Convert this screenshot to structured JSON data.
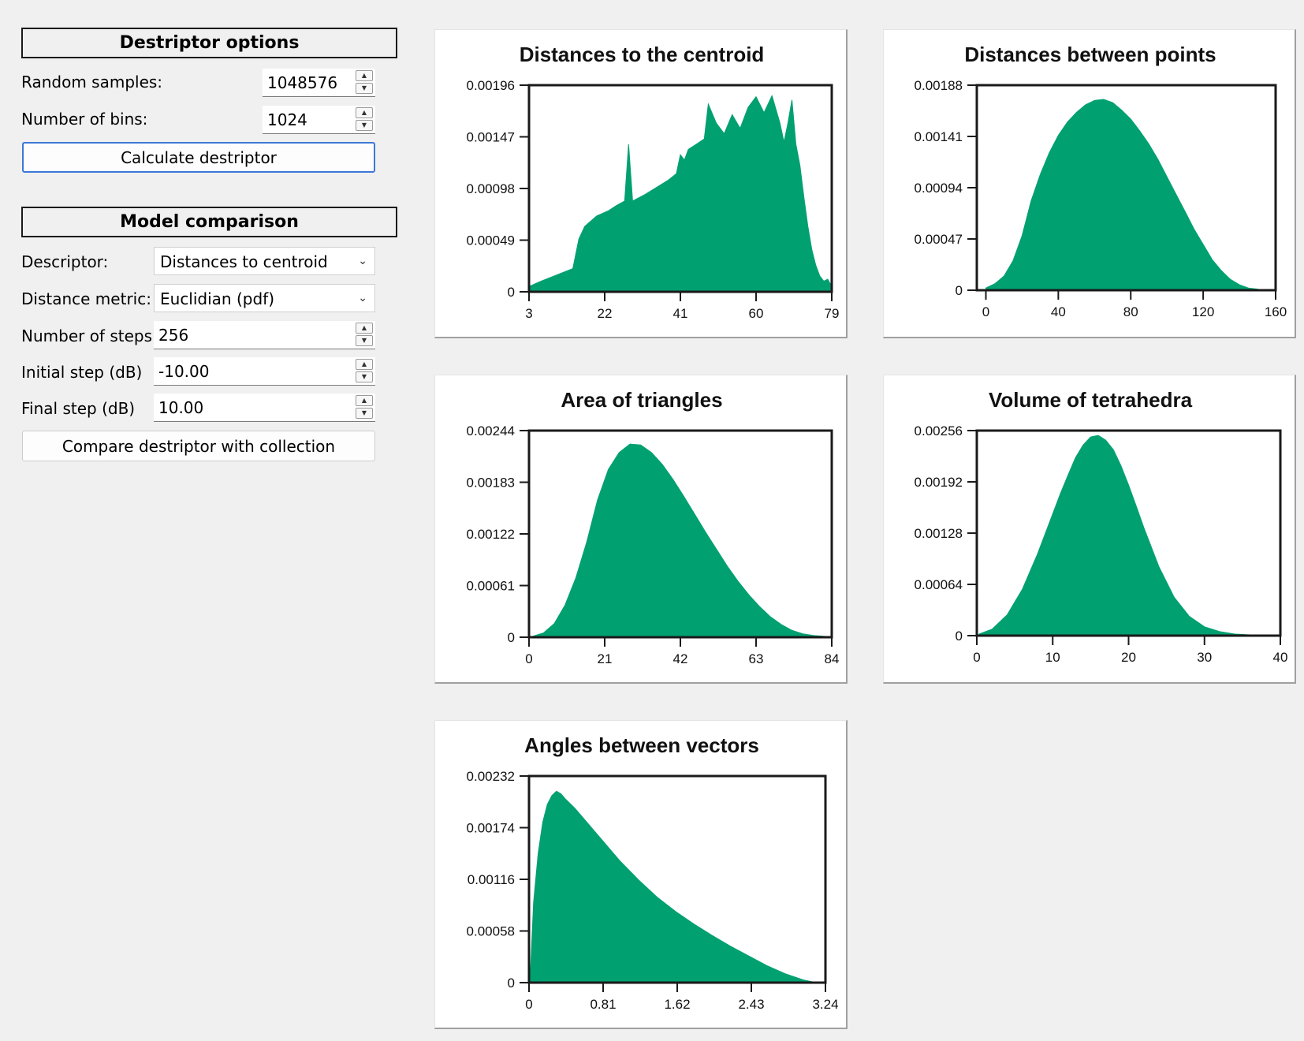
{
  "destriptor_options": {
    "header": "Destriptor options",
    "random_samples": {
      "label": "Random samples:",
      "value": "1048576"
    },
    "number_of_bins": {
      "label": "Number of bins:",
      "value": "1024"
    },
    "calculate_button": "Calculate destriptor"
  },
  "model_comparison": {
    "header": "Model comparison",
    "descriptor": {
      "label": "Descriptor:",
      "value": "Distances to centroid"
    },
    "distance_metric": {
      "label": "Distance metric:",
      "value": "Euclidian (pdf)"
    },
    "number_of_steps": {
      "label": "Number of steps:",
      "value": "256"
    },
    "initial_step": {
      "label": "Initial step (dB)",
      "value": "-10.00"
    },
    "final_step": {
      "label": "Final step (dB)",
      "value": "10.00"
    },
    "compare_button": "Compare destriptor with collection"
  },
  "colors": {
    "bar": "#00a070",
    "axis": "#1a1a1a"
  },
  "chart_data": [
    {
      "type": "area",
      "title": "Distances to the centroid",
      "xlabel": "",
      "ylabel": "",
      "xlim": [
        3,
        79
      ],
      "ylim": [
        0,
        0.00196
      ],
      "x_ticks": [
        "3",
        "22",
        "41",
        "60",
        "79"
      ],
      "y_ticks": [
        "0",
        "0.00049",
        "0.00098",
        "0.00147",
        "0.00196"
      ],
      "x": [
        3,
        6,
        10,
        14,
        15.5,
        17,
        20,
        23,
        25,
        27,
        28,
        29,
        32,
        35,
        38,
        40,
        41,
        42,
        43,
        45,
        47,
        48,
        50,
        52,
        54,
        56,
        58,
        60,
        62,
        64,
        66,
        67,
        68,
        69,
        70,
        71,
        72,
        73,
        74,
        75,
        76,
        77,
        78,
        79
      ],
      "y": [
        5e-05,
        0.0001,
        0.00016,
        0.00022,
        0.0005,
        0.00062,
        0.00072,
        0.00077,
        0.00082,
        0.00086,
        0.0014,
        0.00086,
        0.00092,
        0.00099,
        0.00106,
        0.00112,
        0.0013,
        0.00125,
        0.00135,
        0.0014,
        0.00145,
        0.00178,
        0.0016,
        0.0015,
        0.00168,
        0.00155,
        0.00175,
        0.00185,
        0.0017,
        0.00186,
        0.0016,
        0.00142,
        0.0016,
        0.00182,
        0.0014,
        0.0012,
        0.0009,
        0.00062,
        0.0004,
        0.00025,
        0.00015,
        0.0001,
        0.00012,
        5e-05
      ]
    },
    {
      "type": "area",
      "title": "Distances between points",
      "xlabel": "",
      "ylabel": "",
      "xlim": [
        -5,
        160
      ],
      "ylim": [
        0,
        0.00188
      ],
      "x_ticks": [
        "0",
        "40",
        "80",
        "120",
        "160"
      ],
      "y_ticks": [
        "0",
        "0.00047",
        "0.00094",
        "0.00141",
        "0.00188"
      ],
      "x": [
        0,
        5,
        10,
        15,
        20,
        25,
        30,
        35,
        40,
        45,
        50,
        55,
        60,
        65,
        70,
        75,
        80,
        85,
        90,
        95,
        100,
        105,
        110,
        115,
        120,
        125,
        130,
        135,
        140,
        145,
        150,
        153
      ],
      "y": [
        2e-05,
        6e-05,
        0.00013,
        0.00027,
        0.0005,
        0.00082,
        0.00106,
        0.00126,
        0.00142,
        0.00154,
        0.00163,
        0.0017,
        0.00174,
        0.00175,
        0.00172,
        0.00165,
        0.00157,
        0.00146,
        0.00134,
        0.0012,
        0.00104,
        0.00088,
        0.00072,
        0.00056,
        0.00042,
        0.00028,
        0.00018,
        0.0001,
        5e-05,
        2e-05,
        1e-05,
        0.0
      ]
    },
    {
      "type": "area",
      "title": "Area of triangles",
      "xlabel": "",
      "ylabel": "",
      "xlim": [
        0,
        84
      ],
      "ylim": [
        0,
        0.00244
      ],
      "x_ticks": [
        "0",
        "21",
        "42",
        "63",
        "84"
      ],
      "y_ticks": [
        "0",
        "0.00061",
        "0.00122",
        "0.00183",
        "0.00244"
      ],
      "x": [
        1,
        4,
        7,
        10,
        13,
        16,
        19,
        22,
        25,
        28,
        31,
        34,
        37,
        40,
        43,
        46,
        49,
        52,
        55,
        58,
        61,
        64,
        67,
        70,
        73,
        76,
        79,
        82,
        84
      ],
      "y": [
        1e-05,
        5e-05,
        0.00016,
        0.00038,
        0.0007,
        0.00112,
        0.00162,
        0.00198,
        0.00218,
        0.00228,
        0.00227,
        0.00218,
        0.00204,
        0.00186,
        0.00166,
        0.00145,
        0.00124,
        0.00104,
        0.00084,
        0.00066,
        0.0005,
        0.00036,
        0.00024,
        0.00015,
        8e-05,
        4e-05,
        2e-05,
        1e-05,
        0.0
      ]
    },
    {
      "type": "area",
      "title": "Volume of tetrahedra",
      "xlabel": "",
      "ylabel": "",
      "xlim": [
        0,
        40
      ],
      "ylim": [
        0,
        0.00256
      ],
      "x_ticks": [
        "0",
        "10",
        "20",
        "30",
        "40"
      ],
      "y_ticks": [
        "0",
        "0.00064",
        "0.00128",
        "0.00192",
        "0.00256"
      ],
      "x": [
        0.3,
        2,
        4,
        6,
        8,
        10,
        11,
        12,
        13,
        14,
        15,
        16,
        17,
        18,
        19,
        20,
        21,
        22,
        24,
        26,
        28,
        30,
        32,
        34,
        36,
        38,
        40
      ],
      "y": [
        2e-05,
        8e-05,
        0.00026,
        0.00058,
        0.00102,
        0.00152,
        0.00177,
        0.002,
        0.00222,
        0.00238,
        0.00248,
        0.0025,
        0.00244,
        0.00232,
        0.00212,
        0.00188,
        0.00162,
        0.00135,
        0.00086,
        0.00048,
        0.00024,
        0.00011,
        5e-05,
        2e-05,
        1e-05,
        0.0,
        0.0
      ]
    },
    {
      "type": "area",
      "title": "Angles between vectors",
      "xlabel": "",
      "ylabel": "",
      "xlim": [
        0,
        3.24
      ],
      "ylim": [
        0,
        0.00232
      ],
      "x_ticks": [
        "0",
        "0.81",
        "1.62",
        "2.43",
        "3.24"
      ],
      "y_ticks": [
        "0",
        "0.00058",
        "0.00116",
        "0.00174",
        "0.00232"
      ],
      "x": [
        0.01,
        0.05,
        0.1,
        0.15,
        0.2,
        0.25,
        0.3,
        0.35,
        0.4,
        0.5,
        0.6,
        0.7,
        0.8,
        0.9,
        1.0,
        1.2,
        1.4,
        1.6,
        1.8,
        2.0,
        2.2,
        2.4,
        2.6,
        2.8,
        3.0,
        3.14
      ],
      "y": [
        0.0,
        0.0009,
        0.00145,
        0.0018,
        0.002,
        0.0021,
        0.00215,
        0.00212,
        0.00206,
        0.00196,
        0.00184,
        0.00172,
        0.0016,
        0.00148,
        0.00136,
        0.00115,
        0.00096,
        0.0008,
        0.00066,
        0.00053,
        0.00041,
        0.0003,
        0.00019,
        0.0001,
        3e-05,
        0.0
      ]
    }
  ]
}
